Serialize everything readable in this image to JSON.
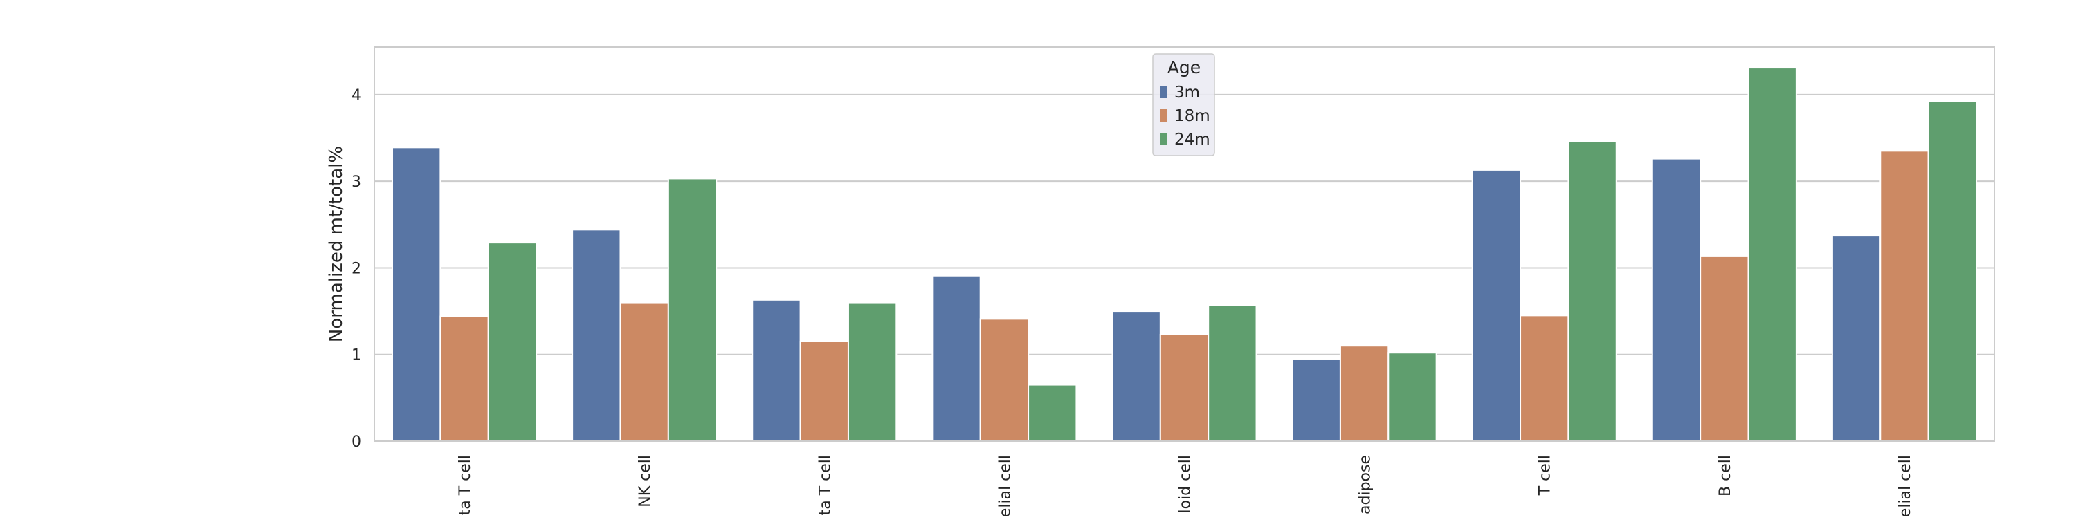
{
  "chart_data": {
    "type": "bar",
    "ylabel": "Normalized mt/total%",
    "xlabel": "",
    "ylim": [
      0,
      4.55
    ],
    "yticks": [
      0,
      1,
      2,
      3,
      4
    ],
    "grid": true,
    "legend": {
      "title": "Age",
      "placement": "top-center"
    },
    "categories": [
      "ta T cell",
      "NK cell",
      "ta T cell",
      "elial cell",
      "loid cell",
      "adipose",
      "T cell",
      "B cell",
      "elial cell"
    ],
    "series": [
      {
        "name": "3m",
        "color": "#5875a4",
        "values": [
          3.39,
          2.44,
          1.63,
          1.91,
          1.5,
          0.95,
          3.13,
          3.26,
          2.37
        ]
      },
      {
        "name": "18m",
        "color": "#cc8963",
        "values": [
          1.44,
          1.6,
          1.15,
          1.41,
          1.23,
          1.1,
          1.45,
          2.14,
          3.35
        ]
      },
      {
        "name": "24m",
        "color": "#5f9e6e",
        "values": [
          2.29,
          3.03,
          1.6,
          0.65,
          1.57,
          1.02,
          3.46,
          4.31,
          3.92
        ]
      }
    ]
  }
}
